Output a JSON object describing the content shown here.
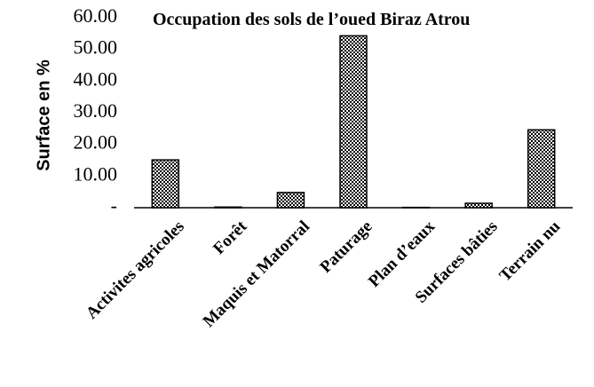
{
  "chart_data": {
    "type": "bar",
    "title": "Occupation des sols de l’oued Biraz Atrou",
    "y_label": "Surface en %",
    "categories": [
      "Activites agricoles",
      "Forêt",
      "Maquis et Matorral",
      "Paturage",
      "Plan d’eaux",
      "Surfaces bâties",
      "Terrain nu"
    ],
    "values": [
      15.1,
      0.2,
      4.8,
      54.3,
      0.1,
      1.4,
      24.6
    ],
    "color": "#000000",
    "ylim": [
      0,
      60
    ],
    "yticks": [
      {
        "value": 0,
        "label": "-"
      },
      {
        "value": 10,
        "label": "10.00"
      },
      {
        "value": 20,
        "label": "20.00"
      },
      {
        "value": 30,
        "label": "30.00"
      },
      {
        "value": 40,
        "label": "40.00"
      },
      {
        "value": 50,
        "label": "50.00"
      },
      {
        "value": 60,
        "label": "60.00"
      }
    ],
    "grid": false
  }
}
